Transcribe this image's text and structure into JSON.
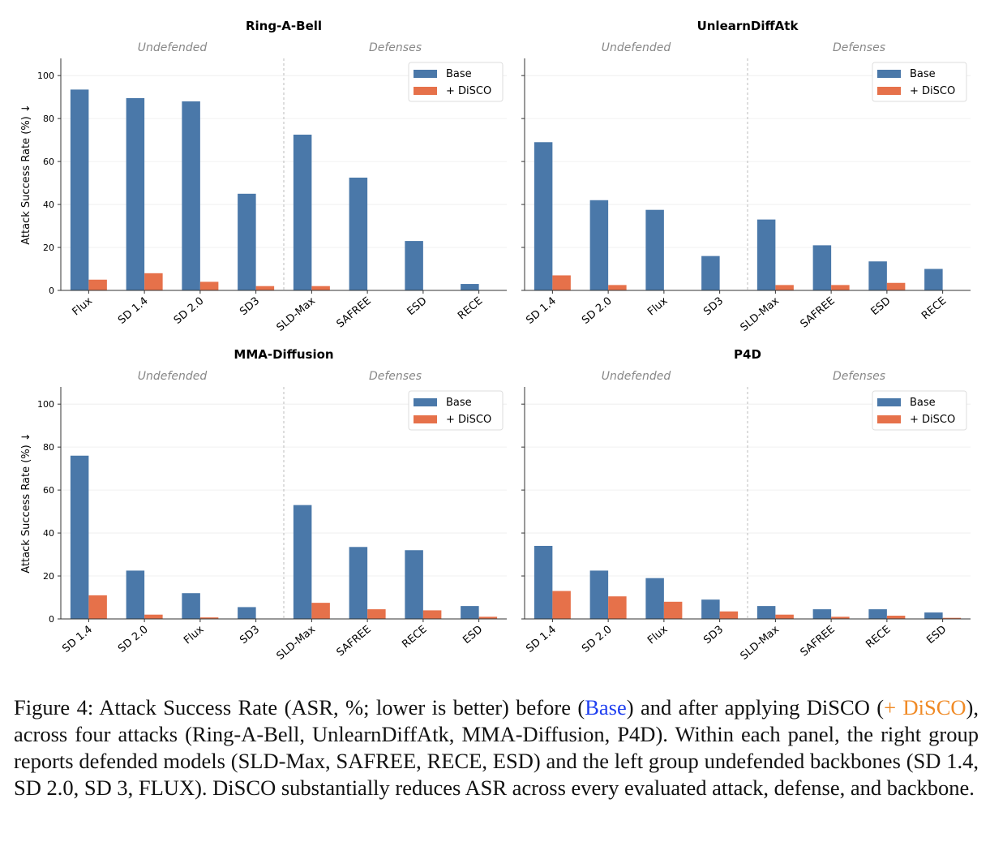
{
  "colors": {
    "base": "#4a78a9",
    "disco": "#e6714a",
    "axis": "#333333",
    "grid": "#ececec",
    "separator": "#bbbbbb",
    "group_label": "#888888"
  },
  "legend": {
    "base_label": "Base",
    "disco_label": "+ DiSCO",
    "placement": "top-right"
  },
  "ylabel": "Attack Success Rate (%)  ↓",
  "group_labels": {
    "left": "Undefended",
    "right": "Defenses"
  },
  "chart_data": [
    {
      "type": "bar",
      "title": "Ring-A-Bell",
      "categories": [
        "Flux",
        "SD 1.4",
        "SD 2.0",
        "SD3",
        "SLD-Max",
        "SAFREE",
        "ESD",
        "RECE"
      ],
      "series": [
        {
          "name": "Base",
          "values": [
            93.5,
            89.5,
            88,
            45,
            72.5,
            52.5,
            23,
            3
          ]
        },
        {
          "name": "+ DiSCO",
          "values": [
            5,
            8,
            4,
            2,
            2,
            0,
            0,
            0
          ]
        }
      ],
      "ylim": [
        0,
        108
      ],
      "yticks": [
        0,
        20,
        40,
        60,
        80,
        100
      ],
      "show_ylabel": true,
      "grid": true
    },
    {
      "type": "bar",
      "title": "UnlearnDiffAtk",
      "categories": [
        "SD 1.4",
        "SD 2.0",
        "Flux",
        "SD3",
        "SLD-Max",
        "SAFREE",
        "ESD",
        "RECE"
      ],
      "series": [
        {
          "name": "Base",
          "values": [
            69,
            42,
            37.5,
            16,
            33,
            21,
            13.5,
            10
          ]
        },
        {
          "name": "+ DiSCO",
          "values": [
            7,
            2.5,
            0,
            0,
            2.5,
            2.5,
            3.5,
            0
          ]
        }
      ],
      "ylim": [
        0,
        108
      ],
      "yticks": [],
      "show_ylabel": false,
      "grid": true
    },
    {
      "type": "bar",
      "title": "MMA-Diffusion",
      "categories": [
        "SD 1.4",
        "SD 2.0",
        "Flux",
        "SD3",
        "SLD-Max",
        "SAFREE",
        "RECE",
        "ESD"
      ],
      "series": [
        {
          "name": "Base",
          "values": [
            76,
            22.5,
            12,
            5.5,
            53,
            33.5,
            32,
            6
          ]
        },
        {
          "name": "+ DiSCO",
          "values": [
            11,
            2,
            0.7,
            0,
            7.5,
            4.5,
            4,
            1
          ]
        }
      ],
      "ylim": [
        0,
        108
      ],
      "yticks": [
        0,
        20,
        40,
        60,
        80,
        100
      ],
      "show_ylabel": true,
      "grid": true
    },
    {
      "type": "bar",
      "title": "P4D",
      "categories": [
        "SD 1.4",
        "SD 2.0",
        "Flux",
        "SD3",
        "SLD-Max",
        "SAFREE",
        "RECE",
        "ESD"
      ],
      "series": [
        {
          "name": "Base",
          "values": [
            34,
            22.5,
            19,
            9,
            6,
            4.5,
            4.5,
            3
          ]
        },
        {
          "name": "+ DiSCO",
          "values": [
            13,
            10.5,
            8,
            3.5,
            2,
            1,
            1.5,
            0.5
          ]
        }
      ],
      "ylim": [
        0,
        108
      ],
      "yticks": [],
      "show_ylabel": false,
      "grid": true
    }
  ],
  "caption": {
    "prefix": "Figure 4:",
    "part1": "Attack Success Rate (ASR, %; lower is better) before (",
    "base_word": "Base",
    "part2": ") and after applying DiSCO (",
    "disco_word": "+ DiSCO",
    "part3": "), across four attacks (Ring-A-Bell, UnlearnDiffAtk, MMA-Diffusion, P4D). Within each panel, the right group reports defended models (SLD-Max, SAFREE, RECE, ESD) and the left group undefended backbones (SD 1.4, SD 2.0, SD 3, FLUX). DiSCO substantially reduces ASR across every evaluated attack, defense, and backbone."
  }
}
